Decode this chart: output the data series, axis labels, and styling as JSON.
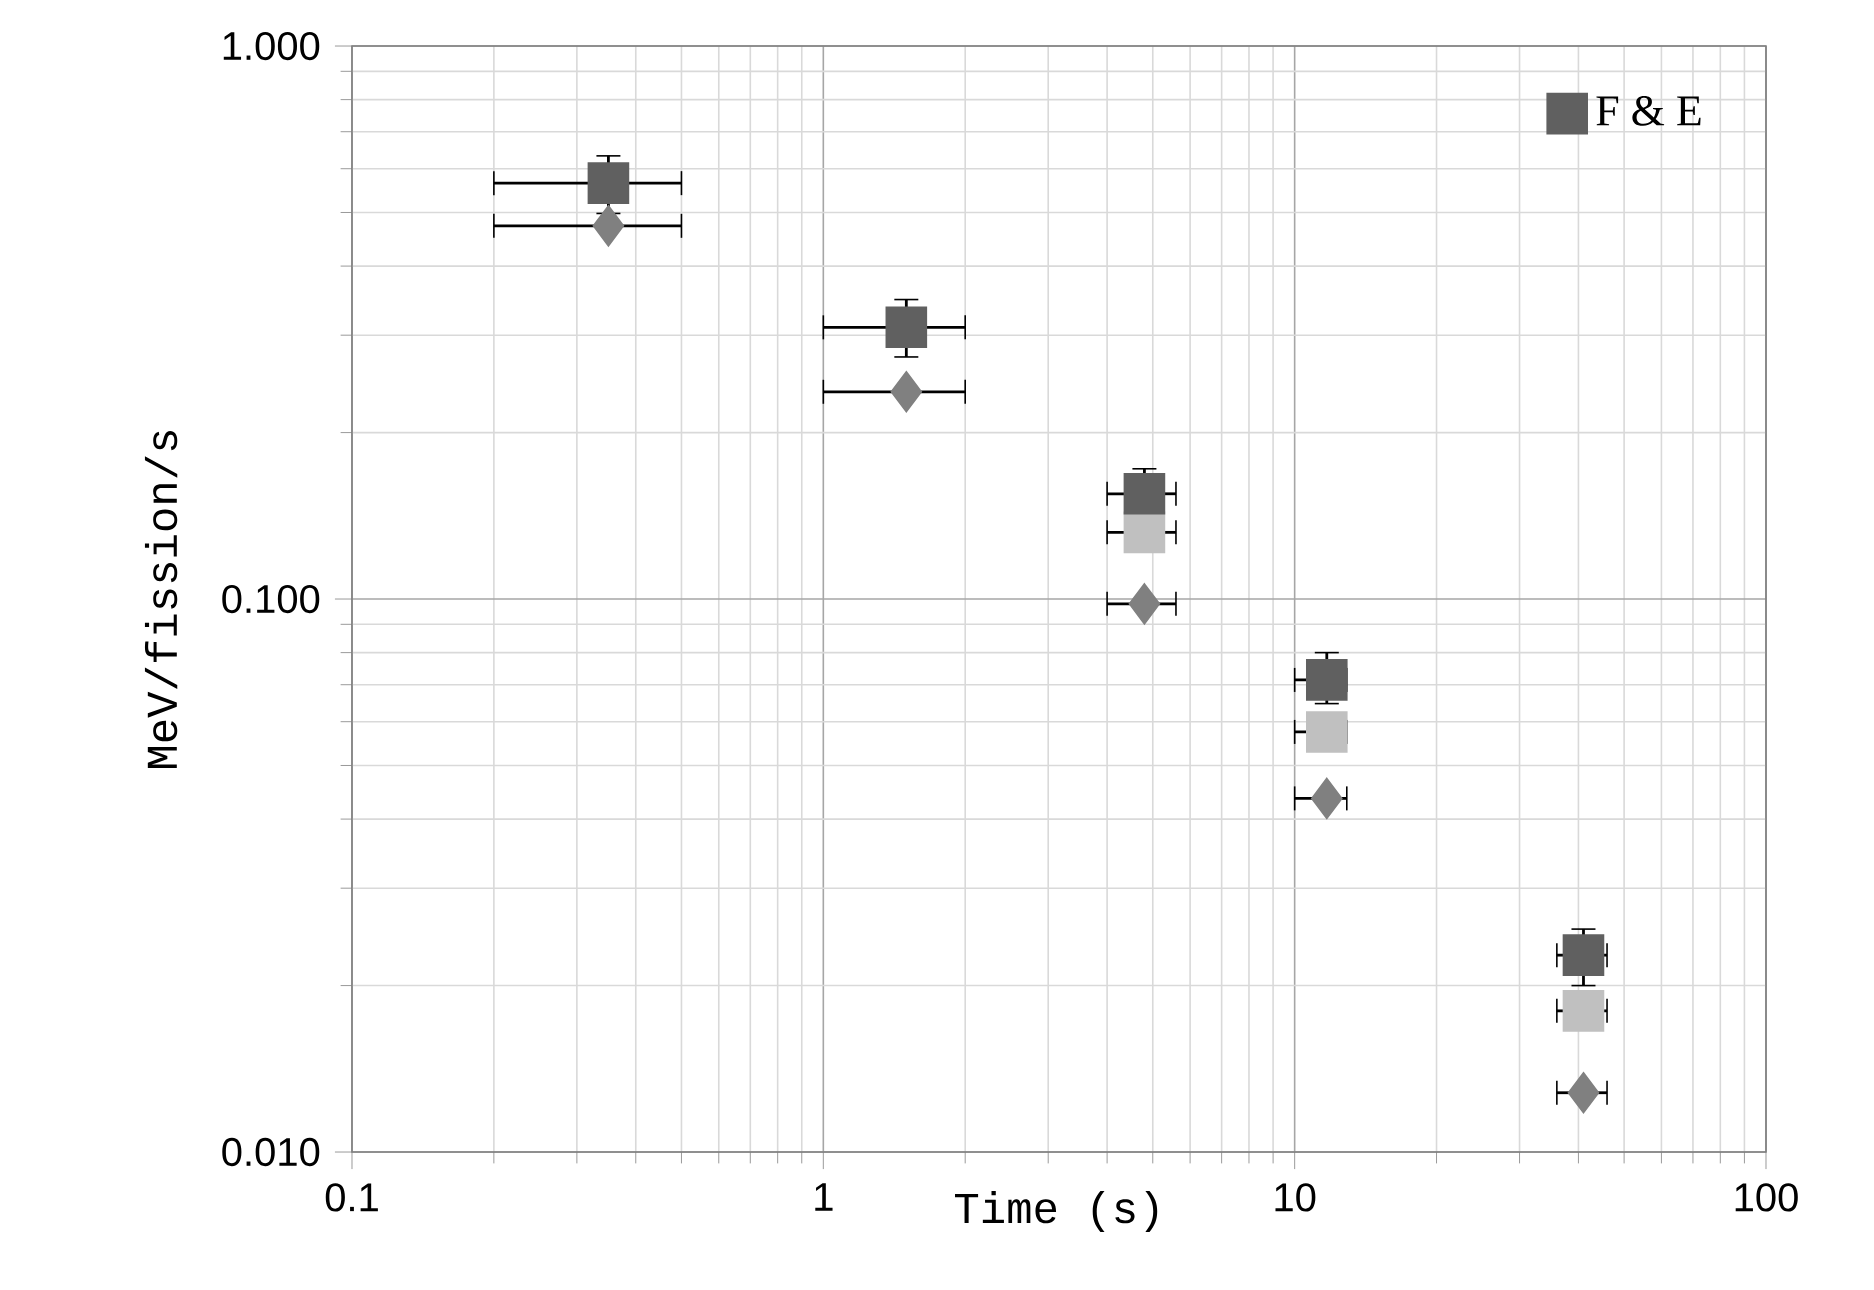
{
  "chart_data": {
    "type": "scatter",
    "xlabel": "Time (s)",
    "ylabel": "MeV/fission/s",
    "log": "xy",
    "grid": true,
    "legend": "top right",
    "xlim": [
      0.1,
      100
    ],
    "xticks": [
      0.1,
      1,
      10,
      100
    ],
    "ylim": [
      0.01,
      1
    ],
    "yticks": [
      {
        "value": 0.01,
        "label": "0.010"
      },
      {
        "value": 0.1,
        "label": "0.100"
      },
      {
        "value": 1,
        "label": "1.000"
      }
    ],
    "x": [
      0.35,
      1.5,
      4.8,
      11.7,
      41
    ],
    "series": [
      {
        "color": "#808080",
        "marker": "diamond",
        "values": [
          0.473,
          0.237,
          0.098,
          0.0436,
          0.0128
        ],
        "xerrors": [
          [
            0.2,
            0.5
          ],
          [
            1,
            2
          ],
          [
            4.0,
            5.6
          ],
          [
            10.0,
            12.9
          ],
          [
            36,
            46
          ]
        ]
      },
      {
        "color": "#c0c0c0",
        "marker": "square",
        "values": [
          null,
          null,
          0.132,
          0.0575,
          0.018
        ],
        "xerrors": [
          null,
          null,
          [
            4.0,
            5.6
          ],
          [
            10.0,
            12.9
          ],
          [
            36,
            46
          ]
        ]
      },
      {
        "name": "F & E",
        "color": "#606060",
        "marker": "square",
        "values": [
          0.565,
          0.31,
          0.155,
          0.0714,
          0.0227
        ],
        "xerrors": [
          [
            0.2,
            0.5
          ],
          [
            1,
            2
          ],
          [
            4.0,
            5.6
          ],
          [
            10.0,
            12.9
          ],
          [
            36,
            46
          ]
        ],
        "errors": [
          [
            0.498,
            0.633
          ],
          [
            0.274,
            0.348
          ],
          [
            0.14,
            0.172
          ],
          [
            0.0647,
            0.08
          ],
          [
            0.02,
            0.0253
          ]
        ]
      }
    ]
  }
}
